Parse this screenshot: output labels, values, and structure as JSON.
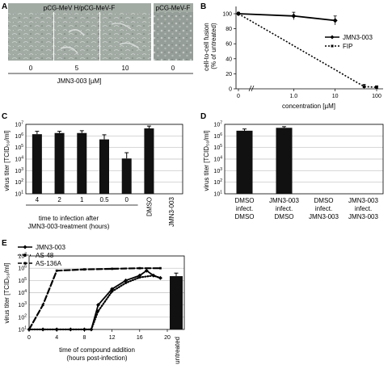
{
  "colors": {
    "bar": "#111111",
    "line": "#000000",
    "micro_bg": "#9aa39d",
    "micro_light": "#c4cbc6",
    "grid": "#bfbfbf"
  },
  "panels": {
    "A": {
      "letter": "A",
      "header_left": "pCG-MeV H/pCG-MeV-F",
      "header_right": "pCG-MeV-F",
      "image_labels": [
        "0",
        "5",
        "10",
        "0"
      ],
      "axis_label": "JMN3-003 [µM]"
    },
    "B": {
      "letter": "B",
      "ylabel": "cell-to-cell fusion (% of untreated)",
      "ylabel_line1": "cell-to-cell fusion",
      "ylabel_line2": "(% of untreated)",
      "xlabel": "concentration [µM]",
      "yticks": [
        "100",
        "80",
        "60",
        "40",
        "20",
        "0"
      ],
      "xticks": [
        "0",
        "1.0",
        "10",
        "100"
      ],
      "legend": [
        "JMN3-003",
        "FIP"
      ]
    },
    "C": {
      "letter": "C",
      "ylabel": "virus titer [TCID₅₀/ml]",
      "xlabel_line1": "time to infection after",
      "xlabel_line2": "JMN3-003-treatment (hours)",
      "yexp": [
        "7",
        "6",
        "5",
        "4",
        "3",
        "2",
        "1"
      ],
      "categories": [
        "4",
        "2",
        "1",
        "0.5",
        "0",
        "DMSO",
        "JMN3-003"
      ]
    },
    "D": {
      "letter": "D",
      "ylabel": "virus titer [TCID₅₀/ml]",
      "yexp": [
        "7",
        "6",
        "5",
        "4",
        "3",
        "2",
        "1"
      ],
      "groups": [
        {
          "l1": "DMSO",
          "l2": "infect.",
          "l3": "DMSO"
        },
        {
          "l1": "JMN3-003",
          "l2": "infect.",
          "l3": "DMSO"
        },
        {
          "l1": "DMSO",
          "l2": "infect.",
          "l3": "JMN3-003"
        },
        {
          "l1": "JMN3-003",
          "l2": "infect.",
          "l3": "JMN3-003"
        }
      ]
    },
    "E": {
      "letter": "E",
      "ylabel": "virus titer [TCID₅₀/ml]",
      "xlabel_line1": "time of compound addition",
      "xlabel_line2": "(hours post-infection)",
      "yexp": [
        "7",
        "6",
        "5",
        "4",
        "3",
        "2",
        "1"
      ],
      "xticks": [
        "0",
        "4",
        "8",
        "12",
        "16",
        "20"
      ],
      "legend": [
        "JMN3-003",
        "AS-48",
        "AS-136A"
      ],
      "bar_label": "untreated"
    }
  },
  "chart_data": [
    {
      "panel": "B",
      "type": "line",
      "xscale": "log",
      "ylim": [
        0,
        100
      ],
      "series": [
        {
          "name": "JMN3-003",
          "x": [
            0,
            1,
            10
          ],
          "y": [
            100,
            97,
            91
          ],
          "err": [
            2,
            5,
            6
          ]
        },
        {
          "name": "FIP",
          "x": [
            0,
            50,
            100
          ],
          "y": [
            100,
            3,
            2
          ],
          "err": [
            0,
            3,
            2
          ]
        }
      ]
    },
    {
      "panel": "C",
      "type": "bar",
      "yscale": "log",
      "ylim_exp": [
        1,
        7
      ],
      "categories": [
        "4",
        "2",
        "1",
        "0.5",
        "0",
        "DMSO",
        "JMN3-003"
      ],
      "values_log10": [
        6.15,
        6.25,
        6.25,
        5.7,
        4.05,
        6.65,
        null
      ],
      "err_log10": [
        0.25,
        0.15,
        0.2,
        0.4,
        0.5,
        0.2,
        0
      ]
    },
    {
      "panel": "D",
      "type": "bar",
      "yscale": "log",
      "ylim_exp": [
        1,
        7
      ],
      "categories": [
        "DMSO infect. DMSO",
        "JMN3-003 infect. DMSO",
        "DMSO infect. JMN3-003",
        "JMN3-003 infect. JMN3-003"
      ],
      "values_log10": [
        6.45,
        6.7,
        null,
        null
      ],
      "err_log10": [
        0.15,
        0.1,
        0,
        0
      ]
    },
    {
      "panel": "E",
      "type": "line",
      "yscale": "log",
      "ylim_exp": [
        1,
        7
      ],
      "xlim": [
        0,
        20
      ],
      "series": [
        {
          "name": "JMN3-003",
          "x": [
            0,
            2,
            4,
            6,
            8,
            9,
            10,
            12,
            14,
            16,
            17,
            18,
            19
          ],
          "y_log10": [
            1,
            1,
            1,
            1,
            1,
            1,
            3,
            4.3,
            5,
            5.4,
            5.8,
            5.4,
            5.2
          ]
        },
        {
          "name": "AS-48",
          "x": [
            0,
            2,
            4,
            6,
            8,
            9,
            10,
            12,
            14,
            16,
            18,
            19
          ],
          "y_log10": [
            1,
            1,
            1,
            1,
            1,
            1,
            2.5,
            4.1,
            4.8,
            5.25,
            5.4,
            5.2
          ]
        },
        {
          "name": "AS-136A",
          "x": [
            0,
            2,
            4,
            8,
            12,
            16,
            19
          ],
          "y_log10": [
            1,
            3,
            5.8,
            5.9,
            5.95,
            6,
            6
          ]
        }
      ],
      "bars": [
        {
          "name": "untreated",
          "value_log10": 5.35,
          "err_log10": 0.25
        }
      ]
    }
  ]
}
